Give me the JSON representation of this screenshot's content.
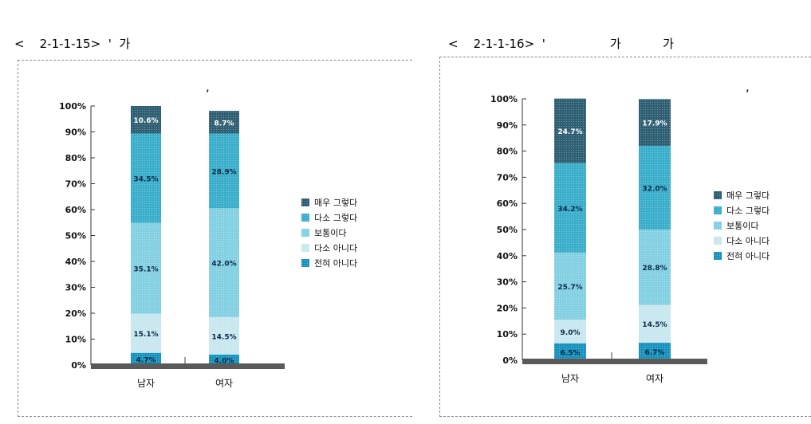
{
  "captions": [
    {
      "line1": "<    2-1-1-15>  '  가",
      "line2": ","
    },
    {
      "line1": "<    2-1-1-16>  '                 가           가",
      "line2": ","
    }
  ],
  "legend_swatch_colors": [
    "#2f5f73",
    "#3aaecb",
    "#84d0e3",
    "#c8e7ef",
    "#1893bd"
  ],
  "chart_data": [
    {
      "type": "bar",
      "stacked": true,
      "categories": [
        "남자",
        "여자"
      ],
      "ylim": [
        0,
        100
      ],
      "yticks": [
        "0%",
        "10%",
        "20%",
        "30%",
        "40%",
        "50%",
        "60%",
        "70%",
        "80%",
        "90%",
        "100%"
      ],
      "legend_position": "right",
      "series": [
        {
          "name": "전혀 아니다",
          "color": "#1893bd",
          "values": [
            4.7,
            4.0
          ],
          "labels": [
            "4.7%",
            "4.0%"
          ]
        },
        {
          "name": "다소 아니다",
          "color": "#c8e7ef",
          "values": [
            15.1,
            14.5
          ],
          "labels": [
            "15.1%",
            "14.5%"
          ]
        },
        {
          "name": "보통이다",
          "color": "#84d0e3",
          "values": [
            35.1,
            42.0
          ],
          "labels": [
            "35.1%",
            "42.0%"
          ]
        },
        {
          "name": "다소 그렇다",
          "color": "#3aaecb",
          "values": [
            34.5,
            28.9
          ],
          "labels": [
            "34.5%",
            "28.9%"
          ]
        },
        {
          "name": "매우 그렇다",
          "color": "#2f5f73",
          "values": [
            10.6,
            8.7
          ],
          "labels": [
            "10.6%",
            "8.7%"
          ]
        }
      ]
    },
    {
      "type": "bar",
      "stacked": true,
      "categories": [
        "남자",
        "여자"
      ],
      "ylim": [
        0,
        100
      ],
      "yticks": [
        "0%",
        "10%",
        "20%",
        "30%",
        "40%",
        "50%",
        "60%",
        "70%",
        "80%",
        "90%",
        "100%"
      ],
      "legend_position": "right",
      "series": [
        {
          "name": "전혀 아니다",
          "color": "#1893bd",
          "values": [
            6.5,
            6.7
          ],
          "labels": [
            "6.5%",
            "6.7%"
          ]
        },
        {
          "name": "다소 아니다",
          "color": "#c8e7ef",
          "values": [
            9.0,
            14.5
          ],
          "labels": [
            "9.0%",
            "14.5%"
          ]
        },
        {
          "name": "보통이다",
          "color": "#84d0e3",
          "values": [
            25.7,
            28.8
          ],
          "labels": [
            "25.7%",
            "28.8%"
          ]
        },
        {
          "name": "다소 그렇다",
          "color": "#3aaecb",
          "values": [
            34.2,
            32.0
          ],
          "labels": [
            "34.2%",
            "32.0%"
          ]
        },
        {
          "name": "매우 그렇다",
          "color": "#2f5f73",
          "values": [
            24.7,
            17.9
          ],
          "labels": [
            "24.7%",
            "17.9%"
          ]
        }
      ]
    }
  ]
}
